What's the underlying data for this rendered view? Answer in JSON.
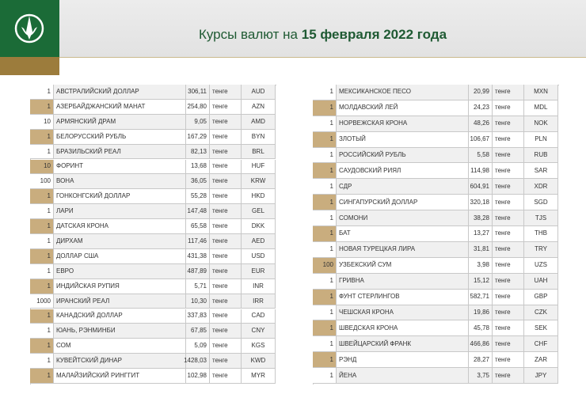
{
  "title": {
    "prefix": "Курсы валют на",
    "date": "15 февраля 2022 года"
  },
  "tables": [
    {
      "rows": [
        [
          "1",
          "АВСТРАЛИЙСКИЙ ДОЛЛАР",
          "306,11",
          "тенге",
          "AUD"
        ],
        [
          "1",
          "АЗЕРБАЙДЖАНСКИЙ МАНАТ",
          "254,80",
          "тенге",
          "AZN"
        ],
        [
          "10",
          "АРМЯНСКИЙ  ДРАМ",
          "9,05",
          "тенге",
          "AMD"
        ],
        [
          "1",
          "БЕЛОРУССКИЙ РУБЛЬ",
          "167,29",
          "тенге",
          "BYN"
        ],
        [
          "1",
          "БРАЗИЛЬСКИЙ РЕАЛ",
          "82,13",
          "тенге",
          "BRL"
        ],
        [
          "10",
          "ФОРИНТ",
          "13,68",
          "тенге",
          "HUF"
        ],
        [
          "100",
          "ВОНА",
          "36,05",
          "тенге",
          "KRW"
        ],
        [
          "1",
          "ГОНКОНГСКИЙ ДОЛЛАР",
          "55,28",
          "тенге",
          "HKD"
        ],
        [
          "1",
          "ЛАРИ",
          "147,48",
          "тенге",
          "GEL"
        ],
        [
          "1",
          "ДАТСКАЯ КРОНА",
          "65,58",
          "тенге",
          "DKK"
        ],
        [
          "1",
          "ДИРХАМ",
          "117,46",
          "тенге",
          "AED"
        ],
        [
          "1",
          "ДОЛЛАР США",
          "431,38",
          "тенге",
          "USD"
        ],
        [
          "1",
          "ЕВРО",
          "487,89",
          "тенге",
          "EUR"
        ],
        [
          "1",
          "ИНДИЙСКАЯ РУПИЯ",
          "5,71",
          "тенге",
          "INR"
        ],
        [
          "1000",
          "ИРАНСКИЙ РЕАЛ",
          "10,30",
          "тенге",
          "IRR"
        ],
        [
          "1",
          "КАНАДСКИЙ ДОЛЛАР",
          "337,83",
          "тенге",
          "CAD"
        ],
        [
          "1",
          "ЮАНЬ, РЭНМИНБИ",
          "67,85",
          "тенге",
          "CNY"
        ],
        [
          "1",
          "СОМ",
          "5,09",
          "тенге",
          "KGS"
        ],
        [
          "1",
          "КУВЕЙТСКИЙ ДИНАР",
          "1428,03",
          "тенге",
          "KWD"
        ],
        [
          "1",
          "МАЛАЙЗИЙСКИЙ РИНГГИТ",
          "102,98",
          "тенге",
          "MYR"
        ]
      ]
    },
    {
      "rows": [
        [
          "1",
          "МЕКСИКАНСКОЕ ПЕСО",
          "20,99",
          "тенге",
          "MXN"
        ],
        [
          "1",
          "МОЛДАВСКИЙ ЛЕЙ",
          "24,23",
          "тенге",
          "MDL"
        ],
        [
          "1",
          "НОРВЕЖСКАЯ КРОНА",
          "48,26",
          "тенге",
          "NOK"
        ],
        [
          "1",
          "ЗЛОТЫЙ",
          "106,67",
          "тенге",
          "PLN"
        ],
        [
          "1",
          "РОССИЙСКИЙ РУБЛЬ",
          "5,58",
          "тенге",
          "RUB"
        ],
        [
          "1",
          "САУДОВСКИЙ РИЯЛ",
          "114,98",
          "тенге",
          "SAR"
        ],
        [
          "1",
          "СДР",
          "604,91",
          "тенге",
          "XDR"
        ],
        [
          "1",
          "СИНГАПУРСКИЙ ДОЛЛАР",
          "320,18",
          "тенге",
          "SGD"
        ],
        [
          "1",
          "СОМОНИ",
          "38,28",
          "тенге",
          "TJS"
        ],
        [
          "1",
          "БАТ",
          "13,27",
          "тенге",
          "THB"
        ],
        [
          "1",
          "НОВАЯ ТУРЕЦКАЯ ЛИРА",
          "31,81",
          "тенге",
          "TRY"
        ],
        [
          "100",
          "УЗБЕКСКИЙ СУМ",
          "3,98",
          "тенге",
          "UZS"
        ],
        [
          "1",
          "ГРИВНА",
          "15,12",
          "тенге",
          "UAH"
        ],
        [
          "1",
          "ФУНТ СТЕРЛИНГОВ",
          "582,71",
          "тенге",
          "GBP"
        ],
        [
          "1",
          "ЧЕШСКАЯ КРОНА",
          "19,86",
          "тенге",
          "CZK"
        ],
        [
          "1",
          "ШВЕДСКАЯ КРОНА",
          "45,78",
          "тенге",
          "SEK"
        ],
        [
          "1",
          "ШВЕЙЦАРСКИЙ ФРАНК",
          "466,86",
          "тенге",
          "CHF"
        ],
        [
          "1",
          "РЭНД",
          "28,27",
          "тенге",
          "ZAR"
        ],
        [
          "1",
          "ЙЕНА",
          "3,75",
          "тенге",
          "JPY"
        ]
      ]
    }
  ]
}
